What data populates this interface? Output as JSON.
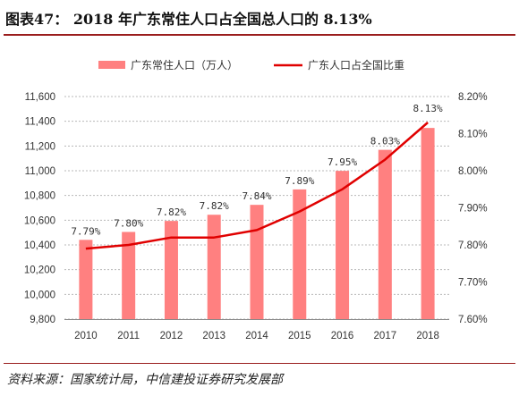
{
  "page": {
    "title": "图表47：  2018 年广东常住人口占全国总人口的 8.13%",
    "source": "资料来源：国家统计局，中信建投证券研究发展部"
  },
  "colors": {
    "bar": "#ff8080",
    "line": "#e00000",
    "grid": "#b8b8b8",
    "rule": "#9a1d1d"
  },
  "chart_data": {
    "type": "bar",
    "categories": [
      "2010",
      "2011",
      "2012",
      "2013",
      "2014",
      "2015",
      "2016",
      "2017",
      "2018"
    ],
    "series": [
      {
        "name": "广东常住人口（万人）",
        "type": "bar",
        "axis": "left",
        "values": [
          10441,
          10505,
          10594,
          10644,
          10724,
          10849,
          10999,
          11169,
          11346
        ]
      },
      {
        "name": "广东人口占全国比重",
        "type": "line",
        "axis": "right",
        "values": [
          7.79,
          7.8,
          7.82,
          7.82,
          7.84,
          7.89,
          7.95,
          8.03,
          8.13
        ],
        "labels": [
          "7.79%",
          "7.80%",
          "7.82%",
          "7.82%",
          "7.84%",
          "7.89%",
          "7.95%",
          "8.03%",
          "8.13%"
        ]
      }
    ],
    "y_left": {
      "min": 9800,
      "max": 11600,
      "step": 200,
      "ticks": [
        "9,800",
        "10,000",
        "10,200",
        "10,400",
        "10,600",
        "10,800",
        "11,000",
        "11,200",
        "11,400",
        "11,600"
      ]
    },
    "y_right": {
      "min": 7.6,
      "max": 8.2,
      "step": 0.1,
      "ticks": [
        "7.60%",
        "7.70%",
        "7.80%",
        "7.90%",
        "8.00%",
        "8.10%",
        "8.20%"
      ]
    },
    "grid": true,
    "legend": "top"
  }
}
